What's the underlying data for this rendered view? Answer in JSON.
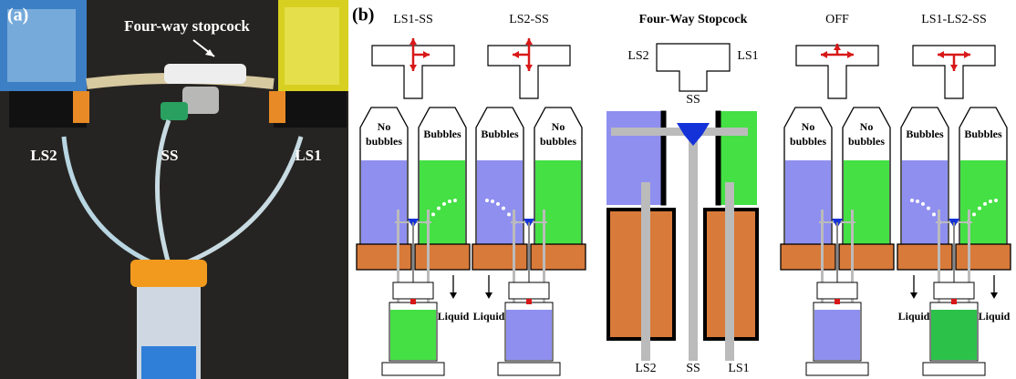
{
  "panel_a": {
    "label": "(a)",
    "title": "Four-way stopcock",
    "tube_labels": [
      "LS2",
      "SS",
      "LS1"
    ]
  },
  "panel_b": {
    "label": "(b)",
    "center": {
      "title": "Four-Way Stopcock",
      "port_labels": [
        "LS2",
        "LS1",
        "SS"
      ],
      "bottom_labels": [
        "LS2",
        "SS",
        "LS1"
      ]
    },
    "modes": [
      {
        "title": "LS1-SS",
        "left": [
          "No",
          "bubbles"
        ],
        "right": [
          "Bubbles"
        ],
        "liquid_left": null,
        "liquid_right": "Liquid",
        "vial_color": "#44e044"
      },
      {
        "title": "LS2-SS",
        "left": [
          "Bubbles"
        ],
        "right": [
          "No",
          "bubbles"
        ],
        "liquid_left": "Liquid",
        "liquid_right": null,
        "vial_color": "#8f8ff0"
      },
      {
        "title": "OFF",
        "left": [
          "No",
          "bubbles"
        ],
        "right": [
          "No",
          "bubbles"
        ],
        "liquid_left": null,
        "liquid_right": null,
        "vial_color": "#8f8ff0"
      },
      {
        "title": "LS1-LS2-SS",
        "left": [
          "Bubbles"
        ],
        "right": [
          "Bubbles"
        ],
        "liquid_left": "Liquid",
        "liquid_right": "Liquid",
        "vial_color": "#2cc24a"
      }
    ]
  }
}
